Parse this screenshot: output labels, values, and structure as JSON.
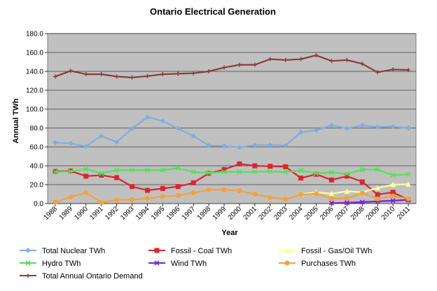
{
  "chart_data": {
    "type": "line",
    "title": "Ontario Electrical Generation",
    "xlabel": "Year",
    "ylabel": "Annual TWh",
    "ylim": [
      0,
      180
    ],
    "y_ticks": [
      "0.0",
      "20.0",
      "40.0",
      "60.0",
      "80.0",
      "100.0",
      "120.0",
      "140.0",
      "160.0",
      "180.0"
    ],
    "grid": true,
    "plot_background": "#c0c0c0",
    "legend_position": "bottom",
    "x": [
      "1988",
      "1989",
      "1990",
      "1991",
      "1992",
      "1993",
      "1994",
      "1995",
      "1996",
      "1997",
      "1998",
      "1999",
      "2000",
      "2001",
      "2002",
      "2003",
      "2004",
      "2005",
      "2006",
      "2007",
      "2008",
      "2009",
      "2010",
      "2011"
    ],
    "series": [
      {
        "name": "Total Nuclear TWh",
        "color": "#7eaee0",
        "marker": "diamond",
        "values": [
          64.5,
          63.8,
          60.5,
          71.5,
          65.0,
          79.5,
          91.5,
          87.5,
          79.5,
          71.5,
          61.5,
          61.0,
          59.5,
          62.0,
          62.0,
          61.5,
          75.5,
          77.5,
          83.0,
          79.5,
          83.0,
          81.0,
          81.5,
          80.0
        ]
      },
      {
        "name": "Fossil - Coal TWh",
        "color": "#d9262e",
        "marker": "square",
        "values": [
          34.0,
          34.5,
          29.0,
          30.0,
          27.5,
          18.0,
          14.0,
          16.0,
          18.0,
          22.0,
          32.0,
          36.0,
          42.0,
          40.0,
          39.5,
          39.0,
          27.0,
          31.0,
          25.0,
          29.0,
          23.0,
          9.5,
          12.0,
          4.0
        ]
      },
      {
        "name": "Fossil - Gas/Oil TWh",
        "color": "#ffff99",
        "marker": "triangle",
        "values": [
          null,
          null,
          null,
          null,
          null,
          null,
          null,
          null,
          null,
          null,
          null,
          null,
          null,
          null,
          null,
          null,
          10.0,
          12.0,
          10.5,
          13.0,
          12.0,
          16.5,
          20.0,
          20.5
        ]
      },
      {
        "name": "Hydro TWh",
        "color": "#55e055",
        "marker": "x",
        "values": [
          33.5,
          34.0,
          36.5,
          32.0,
          35.5,
          35.5,
          35.5,
          35.5,
          37.5,
          33.5,
          32.5,
          33.5,
          33.5,
          33.5,
          34.0,
          33.5,
          35.0,
          32.0,
          33.0,
          31.5,
          36.0,
          36.0,
          30.0,
          31.0
        ]
      },
      {
        "name": "Wind TWh",
        "color": "#7a1fd6",
        "marker": "x",
        "values": [
          null,
          null,
          null,
          null,
          null,
          null,
          null,
          null,
          null,
          null,
          null,
          null,
          null,
          null,
          null,
          null,
          null,
          null,
          0.5,
          0.8,
          1.5,
          2.3,
          3.0,
          4.0
        ]
      },
      {
        "name": "Purchases TWh",
        "color": "#f3a23c",
        "marker": "circle",
        "values": [
          1.5,
          7.0,
          11.5,
          1.0,
          4.0,
          4.0,
          5.5,
          7.5,
          8.5,
          11.5,
          14.5,
          14.5,
          13.5,
          10.0,
          6.5,
          4.5,
          9.5,
          10.5,
          5.5,
          5.5,
          11.0,
          5.0,
          8.0,
          5.0
        ]
      },
      {
        "name": "Total Annual Ontario Demand",
        "color": "#8b3a3a",
        "marker": "plus",
        "values": [
          134.5,
          140.5,
          137.0,
          137.0,
          134.5,
          133.5,
          135.0,
          137.0,
          137.5,
          138.0,
          140.0,
          144.0,
          147.0,
          147.0,
          153.0,
          152.0,
          153.0,
          157.0,
          151.0,
          152.0,
          148.0,
          139.0,
          142.0,
          141.5
        ]
      }
    ]
  }
}
